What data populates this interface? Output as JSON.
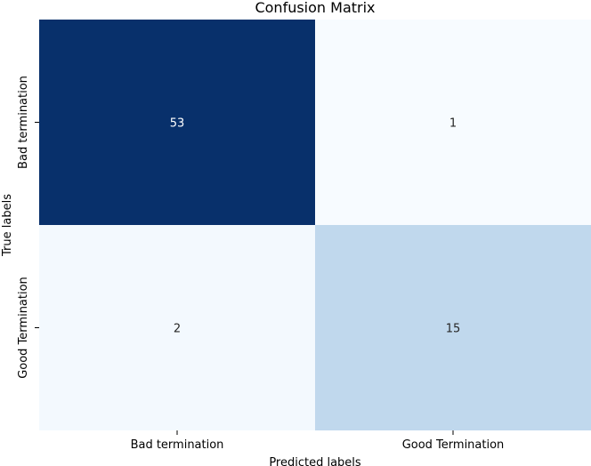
{
  "chart_data": {
    "type": "heatmap",
    "title": "Confusion Matrix",
    "xlabel": "Predicted labels",
    "ylabel": "True labels",
    "x_categories": [
      "Bad termination",
      "Good Termination"
    ],
    "y_categories": [
      "Bad termination",
      "Good Termination"
    ],
    "values": [
      [
        53,
        1
      ],
      [
        2,
        15
      ]
    ],
    "colormap": "Blues",
    "color_range": [
      1,
      53
    ],
    "colorbar": false,
    "grid": false
  }
}
